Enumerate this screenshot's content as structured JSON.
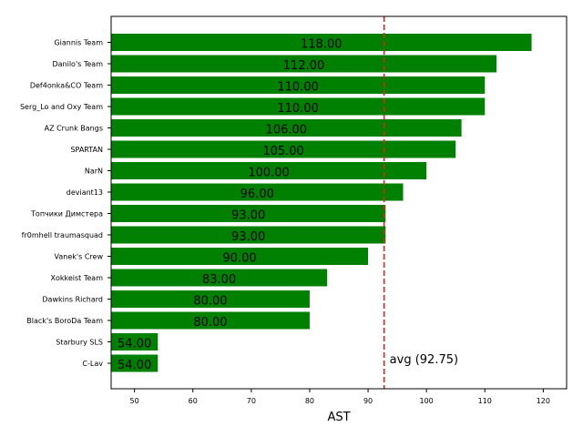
{
  "chart_data": {
    "type": "bar",
    "orientation": "horizontal",
    "categories": [
      "Giannis Team",
      "Danilo's Team",
      "Def4onka&CO Team",
      "Serg_Lo and Oxy Team",
      "AZ Crunk Bangs",
      "SPARTAN",
      "NarN",
      "deviant13",
      "Топчики Димстера",
      "fr0mhell traumasquad",
      "Vanek's Crew",
      "Xokkeist Team",
      "Dawkins Richard",
      "Black's BoroDa Team",
      "Starbury SLS",
      "C-Lav"
    ],
    "values": [
      118,
      112,
      110,
      110,
      106,
      105,
      100,
      96,
      93,
      93,
      90,
      83,
      80,
      80,
      54,
      54
    ],
    "value_labels": [
      "118.00",
      "112.00",
      "110.00",
      "110.00",
      "106.00",
      "105.00",
      "100.00",
      "96.00",
      "93.00",
      "93.00",
      "90.00",
      "83.00",
      "80.00",
      "80.00",
      "54.00",
      "54.00"
    ],
    "xlabel": "AST",
    "xlim": [
      46,
      124
    ],
    "xticks": [
      50,
      60,
      70,
      80,
      90,
      100,
      110,
      120
    ],
    "bar_color": "#008000",
    "reference_line": {
      "value": 92.75,
      "label": "avg (92.75)",
      "color": "#d62728",
      "style": "dashed"
    },
    "grid": false
  }
}
